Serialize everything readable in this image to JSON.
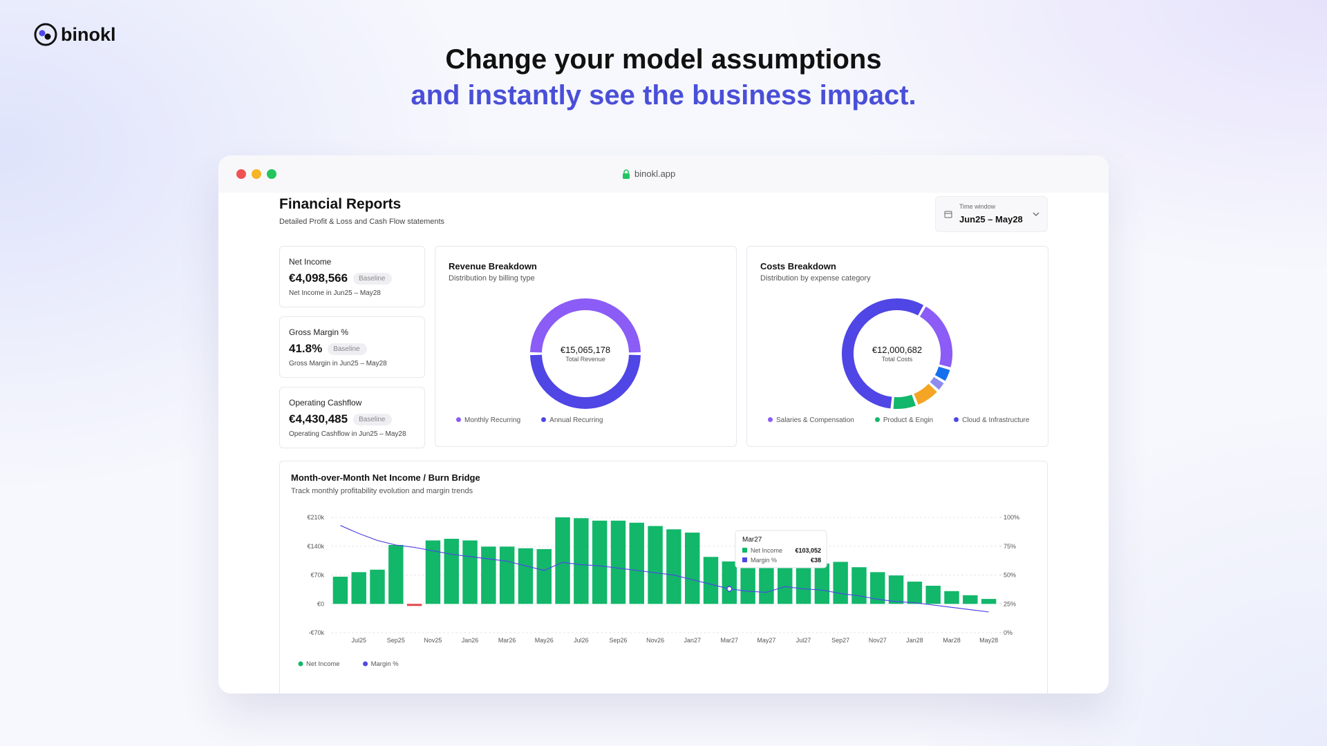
{
  "brand": "binokl",
  "headline": {
    "line1": "Change your model assumptions",
    "line2": "and instantly see the business impact."
  },
  "browser": {
    "url": "binokl.app"
  },
  "report": {
    "title": "Financial Reports",
    "subtitle": "Detailed Profit & Loss and Cash Flow statements",
    "time_window": {
      "label": "Time window",
      "value": "Jun25 – May28"
    }
  },
  "kpis": [
    {
      "label": "Net Income",
      "value": "€4,098,566",
      "badge": "Baseline",
      "note": "Net Income in Jun25 – May28"
    },
    {
      "label": "Gross Margin %",
      "value": "41.8%",
      "badge": "Baseline",
      "note": "Gross Margin in Jun25 – May28"
    },
    {
      "label": "Operating Cashflow",
      "value": "€4,430,485",
      "badge": "Baseline",
      "note": "Operating Cashflow in Jun25 – May28"
    }
  ],
  "chart_data": [
    {
      "type": "donut",
      "title": "Revenue Breakdown",
      "subtitle": "Distribution by billing type",
      "center_value": "€15,065,178",
      "center_label": "Total Revenue",
      "start_angle": -90,
      "categories": [
        "Monthly Recurring",
        "Annual Recurring"
      ],
      "values": [
        50,
        50
      ],
      "colors": [
        "#8b5cf6",
        "#4f46e5"
      ]
    },
    {
      "type": "donut",
      "title": "Costs Breakdown",
      "subtitle": "Distribution by expense category",
      "center_value": "€12,000,682",
      "center_label": "Total Costs",
      "start_angle": 30,
      "categories": [
        "Salaries & Compensation",
        null,
        null,
        null,
        "Product & Engin",
        "Cloud & Infrastructure"
      ],
      "values": [
        20,
        4,
        3,
        7,
        7,
        54
      ],
      "colors": [
        "#8b5cf6",
        "#1570ef",
        "#8e8cf0",
        "#f5a524",
        "#12b76a",
        "#4f46e5"
      ]
    },
    {
      "type": "bar",
      "title": "Month-over-Month Net Income / Burn Bridge",
      "subtitle": "Track monthly profitability evolution and margin trends",
      "categories": [
        null,
        "Jul25",
        null,
        "Sep25",
        null,
        "Nov25",
        null,
        "Jan26",
        null,
        "Mar26",
        null,
        "May26",
        null,
        "Jul26",
        null,
        "Sep26",
        null,
        "Nov26",
        null,
        "Jan27",
        null,
        "Mar27",
        null,
        "May27",
        null,
        "Jul27",
        null,
        "Sep27",
        null,
        "Nov27",
        null,
        "Jan28",
        null,
        "Mar28",
        null,
        "May28"
      ],
      "series": [
        {
          "name": "Net Income",
          "type": "bar",
          "color": "#12b76a",
          "negative_color": "#e5484d",
          "values": [
            66000,
            77000,
            83000,
            143000,
            -5000,
            154000,
            158000,
            154000,
            139000,
            139000,
            135000,
            133000,
            210000,
            208000,
            202000,
            202000,
            197000,
            189000,
            181000,
            173000,
            114000,
            103052,
            104000,
            96000,
            102000,
            100000,
            98000,
            102000,
            89000,
            77000,
            69000,
            54000,
            44000,
            31000,
            21000,
            12000
          ]
        },
        {
          "name": "Margin %",
          "type": "line",
          "axis": "y2",
          "color": "#5046e5",
          "values": [
            93,
            86,
            80,
            76,
            74,
            71,
            68,
            66,
            64,
            62,
            58,
            54,
            61,
            59,
            58,
            56,
            54,
            52,
            50,
            46,
            42,
            38,
            36,
            35,
            40,
            38,
            37,
            34,
            32,
            29,
            27,
            26,
            24,
            22,
            20,
            18
          ]
        }
      ],
      "ylim": [
        -70000,
        210000
      ],
      "yticks": [
        {
          "value": -70000,
          "label": "-€70k"
        },
        {
          "value": 0,
          "label": "€0"
        },
        {
          "value": 70000,
          "label": "€70k"
        },
        {
          "value": 140000,
          "label": "€140k"
        },
        {
          "value": 210000,
          "label": "€210k"
        }
      ],
      "y2lim": [
        0,
        100
      ],
      "y2ticks": [
        {
          "value": 0,
          "label": "0%"
        },
        {
          "value": 25,
          "label": "25%"
        },
        {
          "value": 50,
          "label": "50%"
        },
        {
          "value": 75,
          "label": "75%"
        },
        {
          "value": 100,
          "label": "100%"
        }
      ],
      "grid": true,
      "tooltip": {
        "values": [
          "€103,052",
          "€38"
        ]
      }
    }
  ]
}
